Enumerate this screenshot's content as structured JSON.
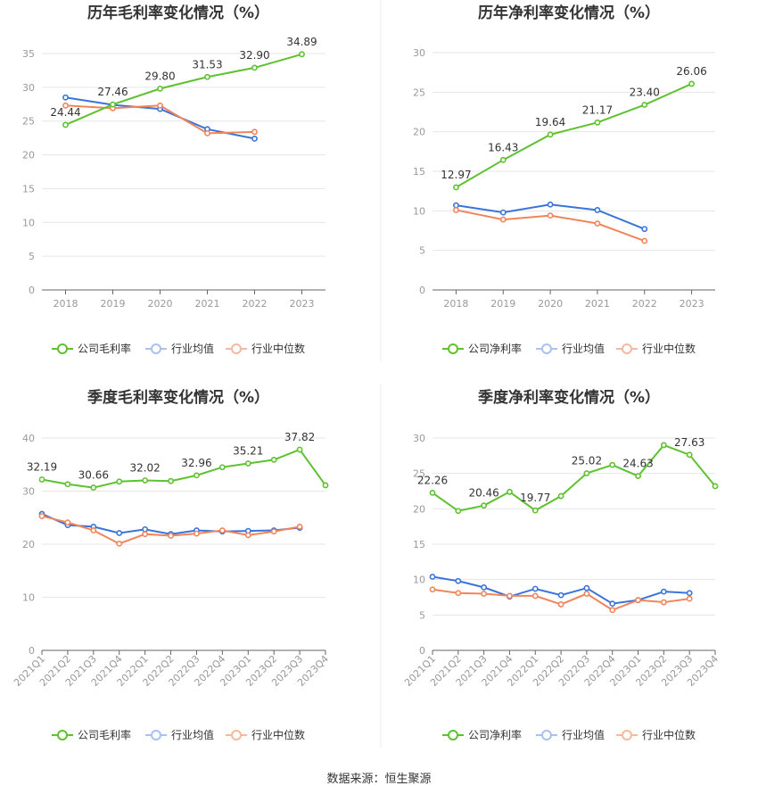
{
  "colors": {
    "company": "#5ec130",
    "industry_avg": "#3a74d9",
    "industry_median": "#f0855a"
  },
  "source_text": "数据来源：恒生聚源",
  "chart_data": [
    {
      "type": "line",
      "title": "历年毛利率变化情况（%）",
      "categories": [
        "2018",
        "2019",
        "2020",
        "2021",
        "2022",
        "2023"
      ],
      "ylim": [
        0,
        35
      ],
      "yticks": [
        0,
        5,
        10,
        15,
        20,
        25,
        30,
        35
      ],
      "grid": true,
      "legend_position": "bottom",
      "series": [
        {
          "name": "公司毛利率",
          "values": [
            24.44,
            27.46,
            29.8,
            31.53,
            32.9,
            34.89
          ],
          "labels": [
            "24.44",
            "27.46",
            "29.80",
            "31.53",
            "32.90",
            "34.89"
          ]
        },
        {
          "name": "行业均值",
          "values": [
            28.5,
            27.4,
            26.8,
            23.8,
            22.4,
            null
          ]
        },
        {
          "name": "行业中位数",
          "values": [
            27.3,
            26.9,
            27.3,
            23.2,
            23.4,
            null
          ]
        }
      ]
    },
    {
      "type": "line",
      "title": "历年净利率变化情况（%）",
      "categories": [
        "2018",
        "2019",
        "2020",
        "2021",
        "2022",
        "2023"
      ],
      "ylim": [
        0,
        30
      ],
      "yticks": [
        0,
        5,
        10,
        15,
        20,
        25,
        30
      ],
      "grid": true,
      "legend_position": "bottom",
      "series": [
        {
          "name": "公司净利率",
          "values": [
            12.97,
            16.43,
            19.64,
            21.17,
            23.4,
            26.06
          ],
          "labels": [
            "12.97",
            "16.43",
            "19.64",
            "21.17",
            "23.40",
            "26.06"
          ]
        },
        {
          "name": "行业均值",
          "values": [
            10.7,
            9.8,
            10.8,
            10.1,
            7.7,
            null
          ]
        },
        {
          "name": "行业中位数",
          "values": [
            10.1,
            8.9,
            9.4,
            8.4,
            6.2,
            null
          ]
        }
      ]
    },
    {
      "type": "line",
      "title": "季度毛利率变化情况（%）",
      "categories": [
        "2021Q1",
        "2021Q2",
        "2021Q3",
        "2021Q4",
        "2022Q1",
        "2022Q2",
        "2022Q3",
        "2022Q4",
        "2023Q1",
        "2023Q2",
        "2023Q3",
        "2023Q4"
      ],
      "ylim": [
        0,
        40
      ],
      "yticks": [
        0,
        10,
        20,
        30,
        40
      ],
      "grid": true,
      "legend_position": "bottom",
      "series": [
        {
          "name": "公司毛利率",
          "values": [
            32.19,
            31.3,
            30.66,
            31.8,
            32.02,
            31.9,
            32.96,
            34.5,
            35.21,
            35.9,
            37.82,
            31.1
          ],
          "labels": [
            "32.19",
            "",
            "30.66",
            "",
            "32.02",
            "",
            "32.96",
            "",
            "35.21",
            "",
            "37.82",
            ""
          ]
        },
        {
          "name": "行业均值",
          "values": [
            25.7,
            23.6,
            23.3,
            22.1,
            22.8,
            21.9,
            22.6,
            22.4,
            22.5,
            22.6,
            23.1,
            null
          ]
        },
        {
          "name": "行业中位数",
          "values": [
            25.3,
            24.1,
            22.6,
            20.1,
            21.9,
            21.6,
            22.0,
            22.6,
            21.7,
            22.4,
            23.3,
            null
          ]
        }
      ]
    },
    {
      "type": "line",
      "title": "季度净利率变化情况（%）",
      "categories": [
        "2021Q1",
        "2021Q2",
        "2021Q3",
        "2021Q4",
        "2022Q1",
        "2022Q2",
        "2022Q3",
        "2022Q4",
        "2023Q1",
        "2023Q2",
        "2023Q3",
        "2023Q4"
      ],
      "ylim": [
        0,
        30
      ],
      "yticks": [
        0,
        5,
        10,
        15,
        20,
        25,
        30
      ],
      "grid": true,
      "legend_position": "bottom",
      "series": [
        {
          "name": "公司净利率",
          "values": [
            22.26,
            19.7,
            20.46,
            22.4,
            19.77,
            21.8,
            25.02,
            26.2,
            24.63,
            29.0,
            27.63,
            23.2
          ],
          "labels": [
            "22.26",
            "",
            "20.46",
            "",
            "19.77",
            "",
            "25.02",
            "",
            "24.63",
            "",
            "27.63",
            ""
          ]
        },
        {
          "name": "行业均值",
          "values": [
            10.4,
            9.8,
            8.9,
            7.6,
            8.7,
            7.8,
            8.8,
            6.6,
            7.1,
            8.3,
            8.1,
            null
          ]
        },
        {
          "name": "行业中位数",
          "values": [
            8.6,
            8.1,
            8.0,
            7.7,
            7.7,
            6.5,
            8.0,
            5.7,
            7.1,
            6.8,
            7.3,
            null
          ]
        }
      ]
    }
  ]
}
